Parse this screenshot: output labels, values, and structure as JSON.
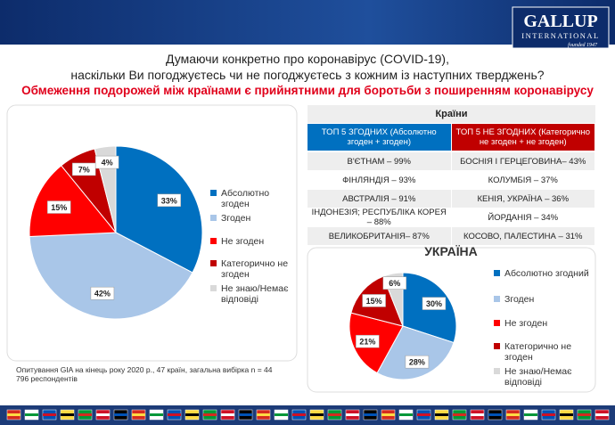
{
  "header": {
    "question_line1": "Думаючи конкретно про коронавірус (COVID-19),",
    "question_line2": "наскільки Ви погоджуєтесь чи не погоджуєтесь з кожним із наступних тверджень?",
    "statement": "Обмеження подорожей між країнами є прийнятними для боротьби з поширенням коронавірусу",
    "logo": "GALLUP",
    "logo_sub": "INTERNATIONAL",
    "founded": "founded 1947"
  },
  "chart_data": [
    {
      "type": "pie",
      "categories": [
        "Абсолютно згоден",
        "Згоден",
        "Не згоден",
        "Категорично не згоден",
        "Не знаю/Немає відповіді"
      ],
      "values": [
        33,
        42,
        15,
        7,
        4
      ],
      "value_labels": [
        "33%",
        "42%",
        "15%",
        "7%",
        "4%"
      ],
      "colors": [
        "#0070c0",
        "#a9c6e8",
        "#ff0000",
        "#c00000",
        "#d9d9d9"
      ]
    },
    {
      "type": "pie",
      "title": "УКРАЇНА",
      "categories": [
        "Абсолютно згодний",
        "Згоден",
        "Не згоден",
        "Категорично не згоден",
        "Не знаю/Немає відповіді"
      ],
      "values": [
        30,
        28,
        21,
        15,
        6
      ],
      "value_labels": [
        "30%",
        "28%",
        "21%",
        "15%",
        "6%"
      ],
      "colors": [
        "#0070c0",
        "#a9c6e8",
        "#ff0000",
        "#c00000",
        "#d9d9d9"
      ]
    }
  ],
  "table": {
    "title": "Країни",
    "headers": [
      "ТОП 5 ЗГОДНИХ (Абсолютно згоден + згоден)",
      "ТОП 5 НЕ ЗГОДНИХ (Категорично не згоден + не згоден)"
    ],
    "rows": [
      [
        "В'ЄТНАМ – 99%",
        "БОСНІЯ І ГЕРЦЕГОВИНА– 43%"
      ],
      [
        "ФІНЛЯНДІЯ – 93%",
        "КОЛУМБІЯ – 37%"
      ],
      [
        "АВСТРАЛІЯ – 91%",
        "КЕНІЯ, УКРАЇНА – 36%"
      ],
      [
        "ІНДОНЕЗІЯ; РЕСПУБЛІКА КОРЕЯ – 88%",
        "ЙОРДАНІЯ – 34%"
      ],
      [
        "ВЕЛИКОБРИТАНІЯ– 87%",
        "КОСОВО, ПАЛЕСТИНА – 31%"
      ]
    ]
  },
  "footnote": "Опитування GIA на кінець року 2020 р., 47 країн, загальна вибірка n = 44 796 респондентів"
}
